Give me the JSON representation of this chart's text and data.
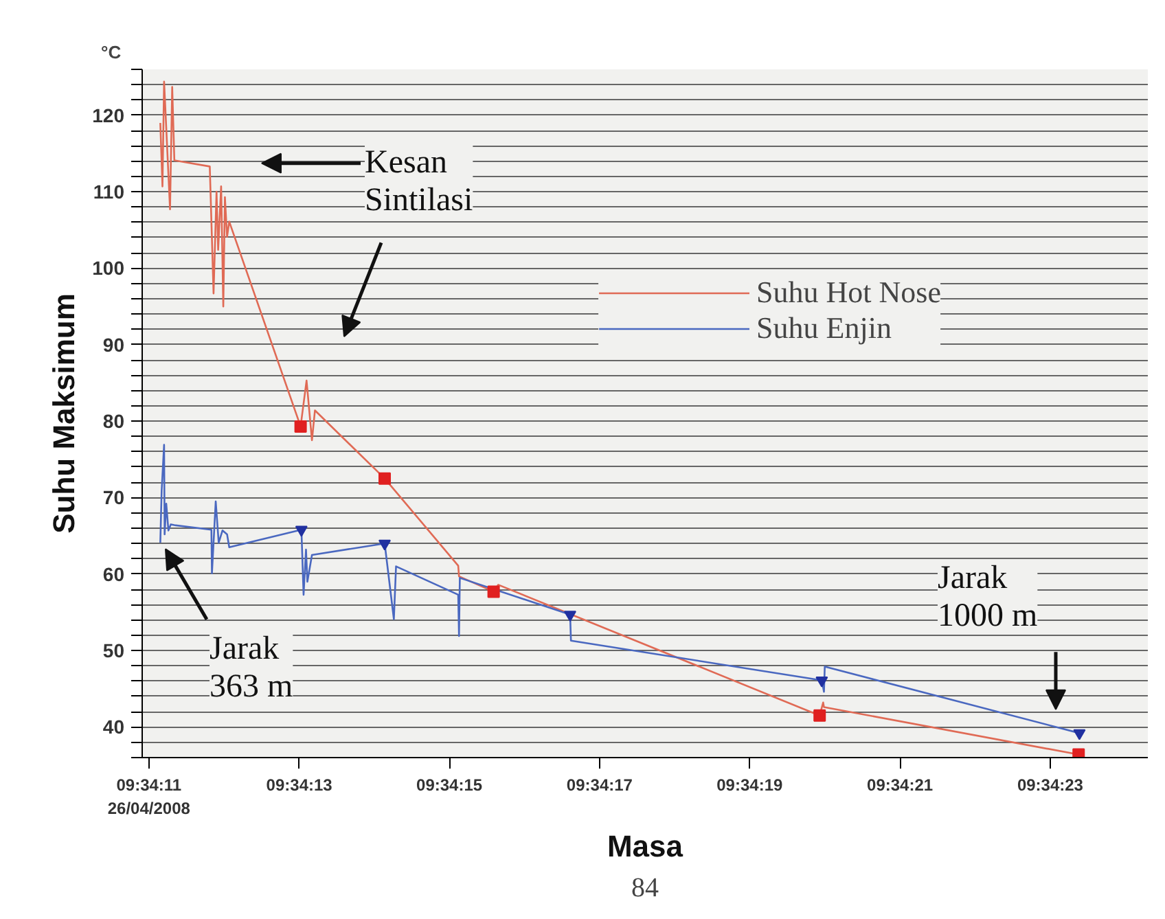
{
  "chart_data": {
    "type": "line",
    "xlabel": "Masa",
    "ylabel": "Suhu Maksimum",
    "xlim": [
      9.569697,
      9.573417
    ],
    "ylim": [
      36,
      126
    ],
    "xticks": [
      {
        "value": 9.569722,
        "label": "09:34:11\n26/04/2008"
      },
      {
        "value": 9.570278,
        "label": "09:34:13"
      },
      {
        "value": 9.570833,
        "label": "09:34:15"
      },
      {
        "value": 9.571389,
        "label": "09:34:17"
      },
      {
        "value": 9.571944,
        "label": "09:34:19"
      },
      {
        "value": 9.5725,
        "label": "09:34:21"
      },
      {
        "value": 9.573056,
        "label": "09:34:23"
      }
    ],
    "yticks": [
      {
        "value": 36,
        "label": null
      },
      {
        "value": 38,
        "label": null
      },
      40,
      {
        "value": 42,
        "label": null
      },
      {
        "value": 44,
        "label": null
      },
      {
        "value": 46,
        "label": null
      },
      {
        "value": 48,
        "label": null
      },
      50,
      {
        "value": 52,
        "label": null
      },
      {
        "value": 54,
        "label": null
      },
      {
        "value": 56,
        "label": null
      },
      {
        "value": 58,
        "label": null
      },
      60,
      {
        "value": 62,
        "label": null
      },
      {
        "value": 64,
        "label": null
      },
      {
        "value": 66,
        "label": null
      },
      {
        "value": 68,
        "label": null
      },
      70,
      {
        "value": 72,
        "label": null
      },
      {
        "value": 74,
        "label": null
      },
      {
        "value": 76,
        "label": null
      },
      {
        "value": 78,
        "label": null
      },
      80,
      {
        "value": 82,
        "label": null
      },
      {
        "value": 84,
        "label": null
      },
      {
        "value": 86,
        "label": null
      },
      {
        "value": 88,
        "label": null
      },
      90,
      {
        "value": 92,
        "label": null
      },
      {
        "value": 94,
        "label": null
      },
      {
        "value": 96,
        "label": null
      },
      {
        "value": 98,
        "label": null
      },
      100,
      {
        "value": 102,
        "label": null
      },
      {
        "value": 104,
        "label": null
      },
      {
        "value": 106,
        "label": null
      },
      {
        "value": 108,
        "label": null
      },
      110,
      {
        "value": 112,
        "label": null
      },
      {
        "value": 114,
        "label": null
      },
      {
        "value": 116,
        "label": null
      },
      {
        "value": 118,
        "label": null
      },
      120,
      {
        "value": 122,
        "label": null
      },
      {
        "value": 124,
        "label": null
      },
      {
        "value": 126,
        "label": null
      }
    ],
    "grid": "y",
    "legend": "top right",
    "series": [
      {
        "name": "Suhu Hot Nose",
        "color": "#e06a55",
        "x": [
          9.569764,
          9.569772,
          9.569778,
          9.5698,
          9.569808,
          9.569816,
          9.569947,
          9.569961,
          9.569972,
          9.569978,
          9.569989,
          9.569997,
          9.570003,
          9.570011,
          9.570019,
          9.570283,
          9.570305,
          9.570325,
          9.570336,
          9.570594,
          9.570866,
          9.570869,
          9.570997,
          9.571014,
          9.572203,
          9.572216,
          9.572219,
          9.573161
        ],
        "values": [
          119,
          110.7,
          124.4,
          107.7,
          123.7,
          114.1,
          113.3,
          96.7,
          110,
          102.4,
          110.7,
          95,
          109.3,
          104.1,
          106.1,
          79.3,
          85.3,
          77.5,
          81.4,
          72.5,
          61.1,
          59.7,
          57.7,
          58.6,
          41.5,
          43.2,
          42.6,
          36.4
        ]
      },
      {
        "name": "Suhu Enjin",
        "color": "#4a68c0",
        "x": [
          9.569764,
          9.569769,
          9.569778,
          9.56978,
          9.569786,
          9.569794,
          9.569803,
          9.569816,
          9.569953,
          9.569955,
          9.569969,
          9.56998,
          9.569994,
          9.570011,
          9.570019,
          9.570286,
          9.570294,
          9.570303,
          9.570308,
          9.570325,
          9.570594,
          9.570628,
          9.570636,
          9.570866,
          9.570869,
          9.570872,
          9.57128,
          9.571283,
          9.572211,
          9.572219,
          9.572222,
          9.573164
        ],
        "values": [
          64.1,
          70.9,
          76.9,
          65.2,
          69.2,
          65.7,
          66.5,
          66.4,
          65.8,
          60.1,
          69.5,
          64.1,
          65.7,
          65.2,
          63.5,
          65.8,
          57.3,
          63.2,
          59,
          62.5,
          64,
          54.1,
          61,
          57.3,
          51.9,
          59.5,
          54.7,
          51.3,
          46.1,
          44.6,
          47.9,
          39.2
        ]
      },
      {
        "type": "scatter",
        "marker": "square",
        "color": "#e02020",
        "x": [
          9.570283,
          9.570594,
          9.570997,
          9.572203,
          9.573161
        ],
        "values": [
          79.3,
          72.5,
          57.7,
          41.5,
          36.4
        ]
      },
      {
        "type": "scatter",
        "marker": "triangle",
        "color": "#2030a0",
        "x": [
          9.570286,
          9.570594,
          9.57128,
          9.572211,
          9.573164
        ],
        "values": [
          65.8,
          64,
          54.7,
          46.1,
          39.2
        ]
      }
    ],
    "annotations": [
      "Kesan\nSintilasi",
      "Jarak\n363 m",
      "Jarak\n1000 m",
      "°C",
      "84"
    ]
  }
}
